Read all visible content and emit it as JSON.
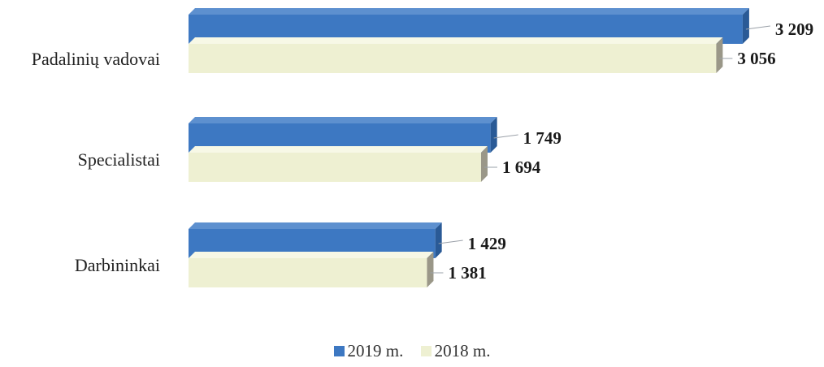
{
  "chart_data": {
    "type": "bar",
    "orientation": "horizontal",
    "categories": [
      "Padalinių vadovai",
      "Specialistai",
      "Darbininkai"
    ],
    "series": [
      {
        "name": "2019 m.",
        "values": [
          3209,
          1749,
          1429
        ],
        "labels": [
          "3 209",
          "1 749",
          "1 429"
        ],
        "color": "#3d78c2"
      },
      {
        "name": "2018 m.",
        "values": [
          3056,
          1694,
          1381
        ],
        "labels": [
          "3 056",
          "1 694",
          "1 381"
        ],
        "color": "#eef0d2"
      }
    ],
    "legend_position": "bottom",
    "grid": false,
    "three_d": true
  }
}
